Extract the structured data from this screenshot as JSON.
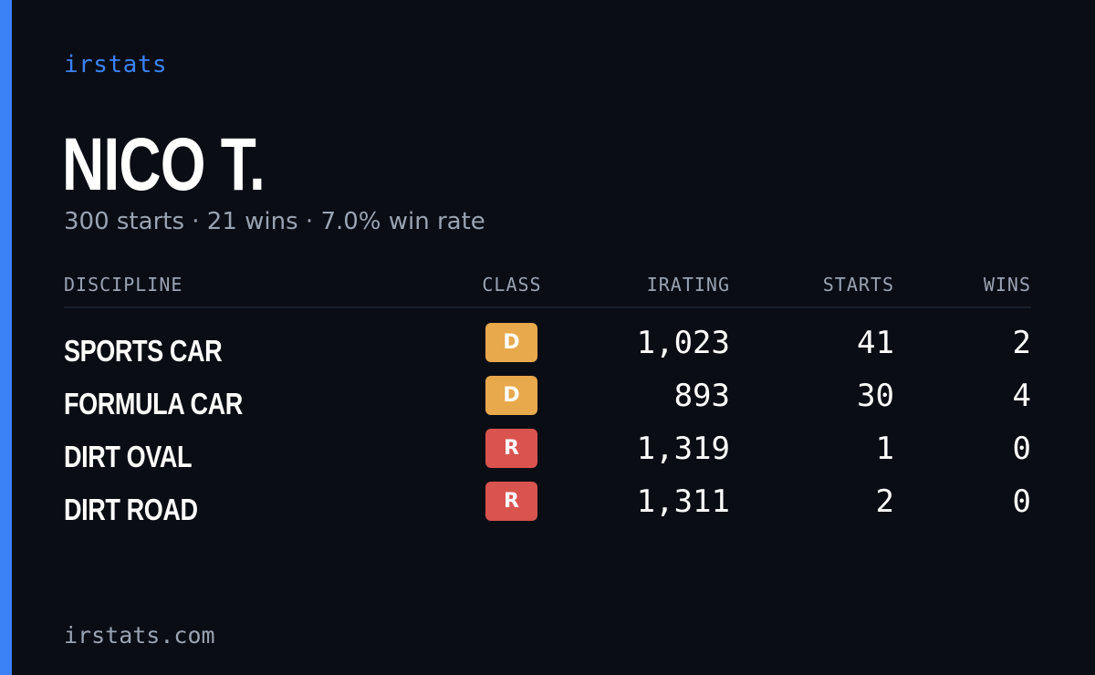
{
  "brand": "irstats",
  "driver": {
    "name": "NICO T.",
    "summary": "300 starts · 21 wins · 7.0% win rate"
  },
  "table": {
    "headers": {
      "discipline": "DISCIPLINE",
      "class": "CLASS",
      "irating": "IRATING",
      "starts": "STARTS",
      "wins": "WINS"
    },
    "rows": [
      {
        "discipline": "SPORTS CAR",
        "class": "D",
        "class_color": "#e8a84c",
        "irating": "1,023",
        "starts": "41",
        "wins": "2"
      },
      {
        "discipline": "FORMULA CAR",
        "class": "D",
        "class_color": "#e8a84c",
        "irating": "893",
        "starts": "30",
        "wins": "4"
      },
      {
        "discipline": "DIRT OVAL",
        "class": "R",
        "class_color": "#d9534f",
        "irating": "1,319",
        "starts": "1",
        "wins": "0"
      },
      {
        "discipline": "DIRT ROAD",
        "class": "R",
        "class_color": "#d9534f",
        "irating": "1,311",
        "starts": "2",
        "wins": "0"
      }
    ]
  },
  "footer": "irstats.com",
  "colors": {
    "background": "#0a0d14",
    "accent": "#3b82f6",
    "muted": "#9aa3b2",
    "class_d": "#e8a84c",
    "class_r": "#d9534f"
  }
}
